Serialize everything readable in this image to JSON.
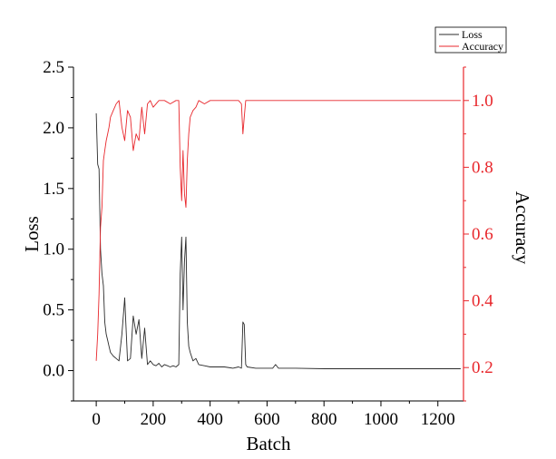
{
  "chart_data": {
    "type": "line",
    "xlabel": "Batch",
    "ylabel_left": "Loss",
    "ylabel_right": "Accuracy",
    "xlim": [
      -80,
      1290
    ],
    "ylim_left": [
      -0.25,
      2.5
    ],
    "ylim_right": [
      0.1,
      1.1
    ],
    "x_ticks": [
      0,
      200,
      400,
      600,
      800,
      1000,
      1200
    ],
    "y_left_ticks": [
      0.0,
      0.5,
      1.0,
      1.5,
      2.0,
      2.5
    ],
    "y_left_tick_labels": [
      "0.0",
      "0.5",
      "1.0",
      "1.5",
      "2.0",
      "2.5"
    ],
    "y_right_ticks": [
      0.2,
      0.4,
      0.6,
      0.8,
      1.0
    ],
    "y_right_tick_labels": [
      "0.2",
      "0.4",
      "0.6",
      "0.8",
      "1.0"
    ],
    "legend_position": "top-right",
    "grid": false,
    "series": [
      {
        "name": "Loss",
        "axis": "left",
        "color": "#2b2b2b",
        "x": [
          0,
          5,
          10,
          15,
          20,
          25,
          30,
          35,
          40,
          45,
          50,
          60,
          70,
          80,
          90,
          100,
          110,
          120,
          130,
          140,
          150,
          160,
          170,
          180,
          190,
          200,
          210,
          220,
          230,
          240,
          250,
          260,
          270,
          280,
          290,
          295,
          300,
          305,
          310,
          315,
          320,
          325,
          330,
          340,
          350,
          360,
          380,
          400,
          450,
          480,
          500,
          510,
          515,
          520,
          525,
          530,
          560,
          600,
          620,
          630,
          640,
          700,
          800,
          900,
          1000,
          1100,
          1200,
          1280
        ],
        "y": [
          2.12,
          1.7,
          1.66,
          1.0,
          0.8,
          0.7,
          0.4,
          0.3,
          0.25,
          0.2,
          0.15,
          0.12,
          0.1,
          0.08,
          0.3,
          0.6,
          0.08,
          0.1,
          0.45,
          0.3,
          0.42,
          0.1,
          0.35,
          0.05,
          0.08,
          0.05,
          0.04,
          0.06,
          0.03,
          0.05,
          0.04,
          0.03,
          0.04,
          0.03,
          0.05,
          0.8,
          1.1,
          0.5,
          0.9,
          1.1,
          0.4,
          0.2,
          0.15,
          0.08,
          0.1,
          0.05,
          0.04,
          0.03,
          0.03,
          0.02,
          0.03,
          0.02,
          0.4,
          0.38,
          0.05,
          0.03,
          0.02,
          0.02,
          0.02,
          0.05,
          0.02,
          0.02,
          0.015,
          0.015,
          0.015,
          0.015,
          0.015,
          0.015
        ]
      },
      {
        "name": "Accuracy",
        "axis": "right",
        "color": "#e8272c",
        "x": [
          0,
          5,
          10,
          15,
          20,
          25,
          30,
          35,
          40,
          45,
          50,
          60,
          70,
          80,
          90,
          100,
          110,
          120,
          130,
          140,
          150,
          160,
          170,
          180,
          190,
          200,
          220,
          240,
          260,
          280,
          290,
          295,
          300,
          305,
          310,
          315,
          320,
          325,
          330,
          340,
          350,
          360,
          380,
          400,
          420,
          450,
          480,
          500,
          510,
          515,
          520,
          525,
          530,
          560,
          600,
          700,
          800,
          900,
          1000,
          1100,
          1200,
          1280
        ],
        "y": [
          0.22,
          0.3,
          0.42,
          0.62,
          0.68,
          0.82,
          0.85,
          0.88,
          0.9,
          0.92,
          0.95,
          0.97,
          0.99,
          1.0,
          0.92,
          0.88,
          0.97,
          0.95,
          0.85,
          0.9,
          0.88,
          0.98,
          0.9,
          0.99,
          1.0,
          0.98,
          1.0,
          1.0,
          0.99,
          1.0,
          1.0,
          0.8,
          0.7,
          0.85,
          0.72,
          0.68,
          0.82,
          0.9,
          0.95,
          0.97,
          0.98,
          1.0,
          0.99,
          1.0,
          1.0,
          1.0,
          1.0,
          1.0,
          0.99,
          0.9,
          0.95,
          1.0,
          1.0,
          1.0,
          1.0,
          1.0,
          1.0,
          1.0,
          1.0,
          1.0,
          1.0,
          1.0
        ]
      }
    ]
  }
}
